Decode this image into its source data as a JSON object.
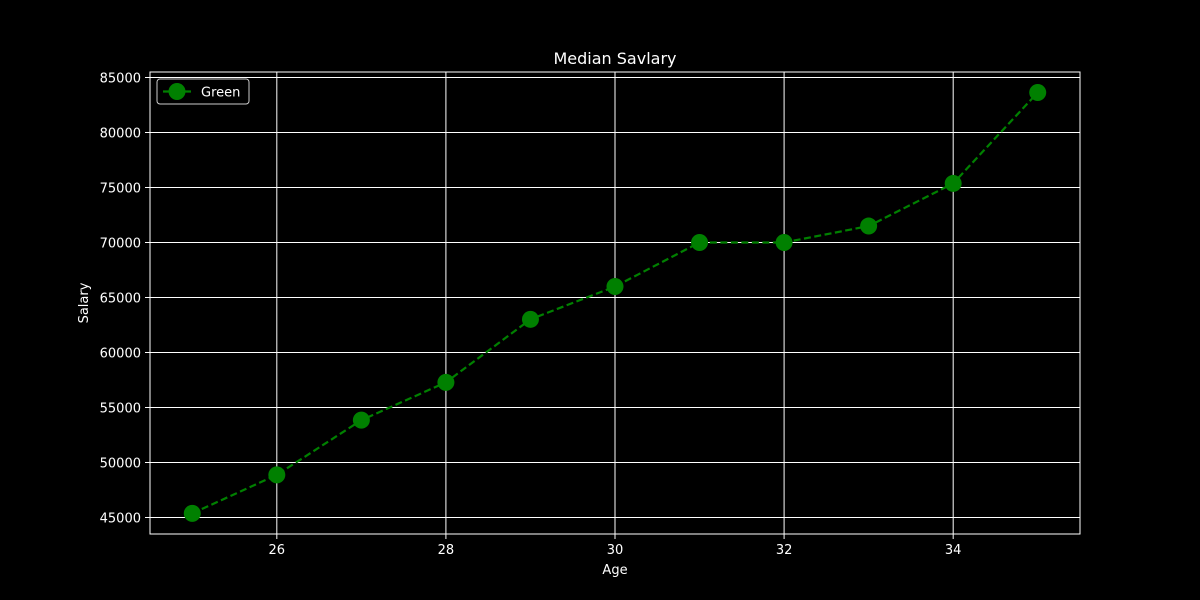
{
  "chart_data": {
    "type": "line",
    "title": "Median Savlary",
    "xlabel": "Age",
    "ylabel": "Salary",
    "xlim": [
      24.5,
      35.5
    ],
    "ylim": [
      43500,
      85500
    ],
    "xticks": [
      26,
      28,
      30,
      32,
      34
    ],
    "yticks": [
      45000,
      50000,
      55000,
      60000,
      65000,
      70000,
      75000,
      80000,
      85000
    ],
    "grid": true,
    "legend_position": "top-left",
    "x": [
      25,
      26,
      27,
      28,
      29,
      30,
      31,
      32,
      33,
      34,
      35
    ],
    "series": [
      {
        "name": "Green",
        "color": "#008000",
        "line_style": "dashed",
        "marker": "circle",
        "values": [
          45372,
          48876,
          53850,
          57287,
          63016,
          65998,
          70003,
          70000,
          71496,
          75370,
          83640
        ]
      }
    ]
  }
}
